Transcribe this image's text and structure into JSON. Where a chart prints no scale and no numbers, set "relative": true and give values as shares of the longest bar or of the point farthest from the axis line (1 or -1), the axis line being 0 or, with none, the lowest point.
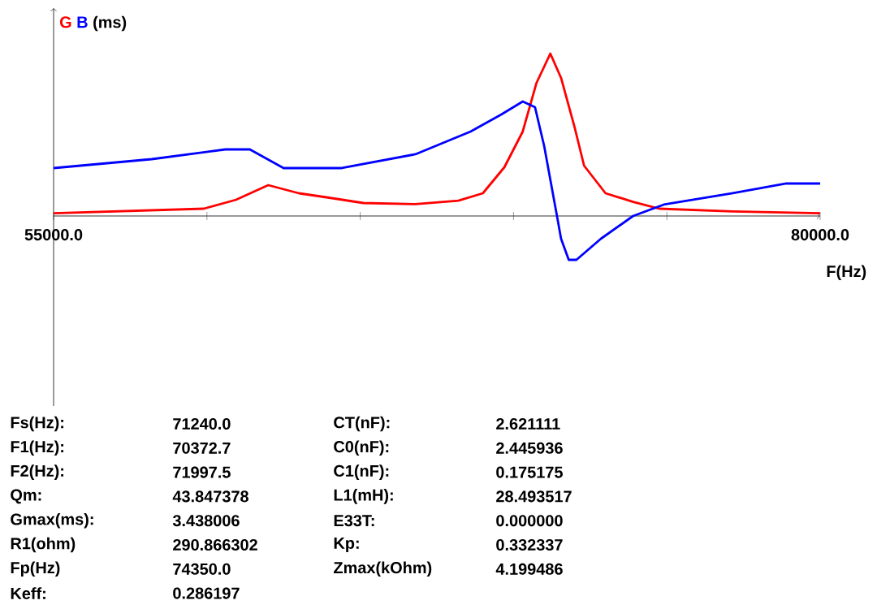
{
  "chart_data": {
    "type": "line",
    "relative": true,
    "ylabel": "(ms)",
    "xlabel": "F(Hz)",
    "legend": "top left",
    "xlim": [
      55000,
      80000
    ],
    "xticks": [
      {
        "value": 55000,
        "label": "55000.0"
      },
      {
        "value": 60000,
        "label": null
      },
      {
        "value": 65000,
        "label": null
      },
      {
        "value": 70000,
        "label": null
      },
      {
        "value": 75000,
        "label": null
      },
      {
        "value": 80000,
        "label": "80000.0"
      }
    ],
    "series": [
      {
        "name": "G",
        "color": "#ff0000",
        "x": [
          55000,
          59900,
          60950,
          62000,
          63000,
          63900,
          65100,
          66800,
          68200,
          69000,
          69700,
          70300,
          70750,
          71200,
          71550,
          72000,
          72300,
          73000,
          73900,
          74750,
          77150,
          80000
        ],
        "values": [
          0.017,
          0.045,
          0.1,
          0.19,
          0.14,
          0.115,
          0.08,
          0.073,
          0.094,
          0.14,
          0.3,
          0.52,
          0.82,
          1.0,
          0.85,
          0.54,
          0.31,
          0.14,
          0.087,
          0.045,
          0.028,
          0.017
        ]
      },
      {
        "name": "B",
        "color": "#0000ff",
        "x": [
          55000,
          58200,
          60600,
          61400,
          62500,
          64400,
          66800,
          68600,
          69600,
          70300,
          70700,
          71000,
          71400,
          71550,
          71800,
          72050,
          72850,
          73900,
          74900,
          77150,
          78900,
          80000
        ],
        "values": [
          0.295,
          0.35,
          0.41,
          0.41,
          0.295,
          0.295,
          0.38,
          0.52,
          0.625,
          0.705,
          0.67,
          0.43,
          0.017,
          -0.14,
          -0.27,
          -0.27,
          -0.14,
          0.0,
          0.07,
          0.14,
          0.2,
          0.2
        ]
      }
    ],
    "annotations": [
      "Fs(Hz):",
      "71240.0",
      "CT(nF):",
      "2.621111",
      "F1(Hz):",
      "70372.7",
      "C0(nF):",
      "2.445936",
      "F2(Hz):",
      "71997.5",
      "C1(nF):",
      "0.175175",
      "Qm:",
      "43.847378",
      "L1(mH):",
      "28.493517",
      "Gmax(ms):",
      "3.438006",
      "E33T:",
      "0.000000",
      "R1(ohm)",
      "290.866302",
      "Kp:",
      "0.332337",
      "Fp(Hz)",
      "74350.0",
      "Zmax(kOhm)",
      "4.199486",
      "Keff:",
      "0.286197"
    ]
  }
}
